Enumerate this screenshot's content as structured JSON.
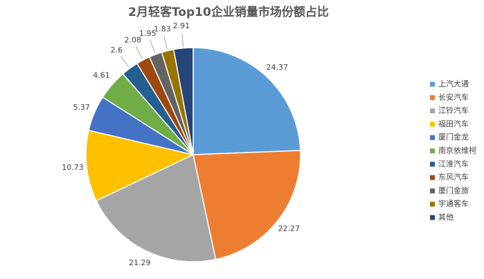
{
  "chart_data": {
    "type": "pie",
    "title": "2月轻客Top10企业销量市场份额占比",
    "categories": [
      "上汽大通",
      "长安汽车",
      "江铃汽车",
      "福田汽车",
      "厦门金龙",
      "南京依维柯",
      "江淮汽车",
      "东风汽车",
      "厦门金旅",
      "宇通客车",
      "其他"
    ],
    "values": [
      24.37,
      22.27,
      21.29,
      10.73,
      5.37,
      4.61,
      2.6,
      2.08,
      1.95,
      1.83,
      2.91
    ],
    "colors": [
      "#5b9bd5",
      "#ed7d31",
      "#a5a5a5",
      "#ffc000",
      "#4472c4",
      "#70ad47",
      "#255e91",
      "#9e480e",
      "#636363",
      "#997300",
      "#264478"
    ],
    "legend": "right"
  }
}
